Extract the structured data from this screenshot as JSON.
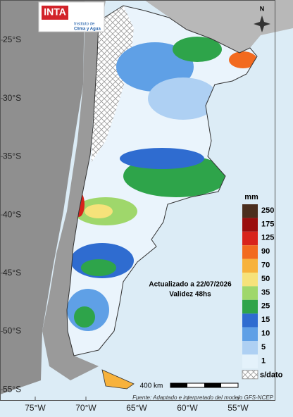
{
  "logo": {
    "brand": "INTA",
    "institute": [
      "Instituto de",
      "Clima y Agua"
    ]
  },
  "north": "N",
  "latitudes": [
    "25°S",
    "30°S",
    "35°S",
    "40°S",
    "45°S",
    "50°S",
    "55°S"
  ],
  "longitudes": [
    "75°W",
    "70°W",
    "65°W",
    "60°W",
    "55°W"
  ],
  "legend": {
    "unit": "mm",
    "items": [
      {
        "label": "250",
        "color": "#4b2e1e"
      },
      {
        "label": "175",
        "color": "#9a0d0d"
      },
      {
        "label": "125",
        "color": "#d8231b"
      },
      {
        "label": "90",
        "color": "#f26a1f"
      },
      {
        "label": "70",
        "color": "#f7b23c"
      },
      {
        "label": "50",
        "color": "#f6e27a"
      },
      {
        "label": "35",
        "color": "#9fd76b"
      },
      {
        "label": "25",
        "color": "#2ea44a"
      },
      {
        "label": "15",
        "color": "#2f6cd0"
      },
      {
        "label": "10",
        "color": "#5fa0e6"
      },
      {
        "label": "5",
        "color": "#aed0f3"
      },
      {
        "label": "1",
        "color": "#e4f2fb"
      }
    ],
    "no_data": "s/dato"
  },
  "info": [
    "Actualizado a 22/07/2026",
    "Validez 48hs"
  ],
  "scale": "400 km",
  "source": "Fuente: Adaptado e interpretado del modelo GFS-NCEP"
}
